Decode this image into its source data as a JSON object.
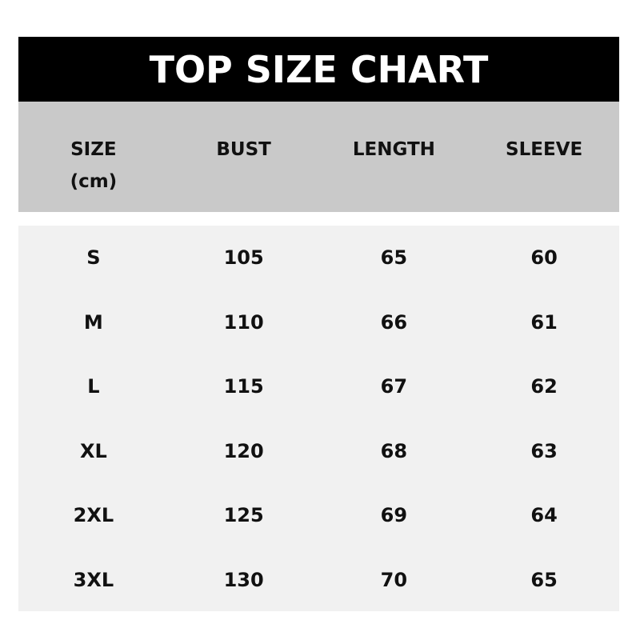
{
  "title": "TOP SIZE CHART",
  "headers": [
    {
      "line1": "SIZE",
      "line2": "(cm)"
    },
    {
      "line1": "BUST"
    },
    {
      "line1": "LENGTH"
    },
    {
      "line1": "SLEEVE"
    }
  ],
  "rows": [
    [
      "S",
      "105",
      "65",
      "60"
    ],
    [
      "M",
      "110",
      "66",
      "61"
    ],
    [
      "L",
      "115",
      "67",
      "62"
    ],
    [
      "XL",
      "120",
      "68",
      "63"
    ],
    [
      "2XL",
      "125",
      "69",
      "64"
    ],
    [
      "3XL",
      "130",
      "70",
      "65"
    ]
  ],
  "colors": {
    "title_bg": "#000000",
    "header_bg": "#c9c9c9",
    "body_bg": "#f1f1f1",
    "text": "#111111"
  }
}
